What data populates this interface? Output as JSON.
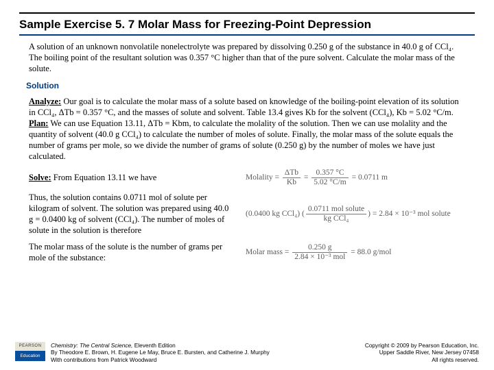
{
  "title": "Sample Exercise 5. 7 Molar Mass for Freezing-Point Depression",
  "problem": "A solution of an unknown nonvolatile nonelectrolyte was prepared by dissolving 0.250 g of the substance in 40.0 g of CCl₄. The boiling point of the resultant solution was 0.357 °C higher than that of the pure solvent. Calculate the molar mass of the solute.",
  "solution_header": "Solution",
  "analyze_label": "Analyze:",
  "analyze_text": " Our goal is to calculate the molar mass of a solute based on knowledge of the boiling-point elevation of its solution in CCl₄, ΔTb = 0.357 °C, and the masses of solute and solvent. Table 13.4 gives Kb for the solvent (CCl₄), Kb = 5.02 °C/m.",
  "plan_label": "Plan:",
  "plan_text": " We can use Equation 13.11, ΔTb = Kbm, to calculate the molality of the solution. Then we can use molality and the quantity of solvent (40.0 g CCl₄) to calculate the number of moles of solute. Finally, the molar mass of the solute equals the number of grams per mole, so we divide the number of grams of solute (0.250 g) by the number of moles we have just calculated.",
  "solve_label": "Solve:",
  "solve_text": " From Equation 13.11 we have",
  "thus_text": "Thus, the solution contains 0.0711 mol of solute per kilogram of solvent. The solution was prepared using 40.0 g = 0.0400 kg of solvent (CCl₄). The number of moles of solute in the solution is therefore",
  "molar_text": "The molar mass of the solute is the number of grams per mole of the substance:",
  "eq1": {
    "label": "Molality =",
    "num1": "ΔTb",
    "den1": "Kb",
    "num2": "0.357 °C",
    "den2": "5.02 °C/m",
    "result": "= 0.0711 m"
  },
  "eq2": {
    "lhs": "(0.0400 kg CCl₄)",
    "num": "0.0711 mol solute",
    "den": "kg CCl₄",
    "result": "= 2.84 × 10⁻³ mol solute"
  },
  "eq3": {
    "label": "Molar mass =",
    "num": "0.250 g",
    "den": "2.84 × 10⁻³ mol",
    "result": "= 88.0 g/mol"
  },
  "footer": {
    "logo_top": "PEARSON",
    "logo_bot": "Education",
    "left1": "Chemistry: The Central Science,",
    "left1b": " Eleventh Edition",
    "left2": "By Theodore E. Brown, H. Eugene Le May, Bruce E. Bursten, and Catherine J. Murphy",
    "left3": "With contributions from Patrick Woodward",
    "right1": "Copyright © 2009 by Pearson Education, Inc.",
    "right2": "Upper Saddle River, New Jersey 07458",
    "right3": "All rights reserved."
  }
}
